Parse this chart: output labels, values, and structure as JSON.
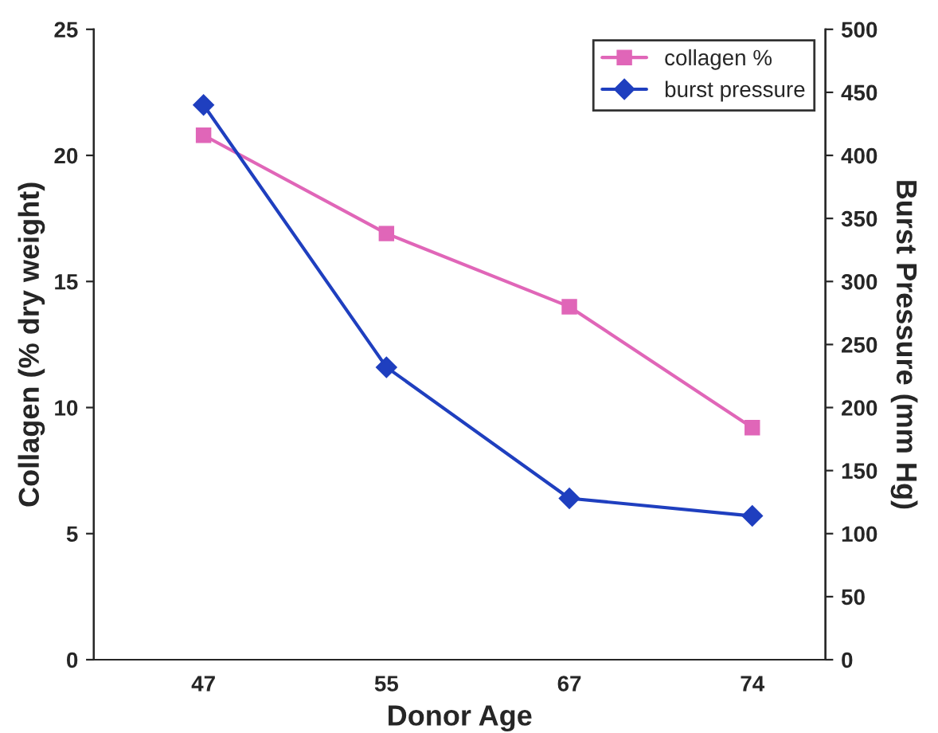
{
  "chart_data": {
    "type": "line",
    "xlabel": "Donor Age",
    "ylabel": "Collagen (% dry weight)",
    "y2label": "Burst Pressure (mm Hg)",
    "categories": [
      "47",
      "55",
      "67",
      "74"
    ],
    "series": [
      {
        "name": "collagen %",
        "color": "#e066b8",
        "marker": "square",
        "values": [
          20.8,
          16.9,
          14.0,
          9.2
        ]
      },
      {
        "name": "burst pressure",
        "color": "#1f3fbf",
        "marker": "diamond",
        "axis": "y2",
        "values": [
          440,
          232,
          128,
          114
        ]
      }
    ],
    "ylim": [
      0,
      25
    ],
    "yticks": [
      0,
      5,
      10,
      15,
      20,
      25
    ],
    "y2lim": [
      0,
      500
    ],
    "y2ticks": [
      0,
      50,
      100,
      150,
      200,
      250,
      300,
      350,
      400,
      450,
      500
    ],
    "legend": "top right",
    "grid": false
  }
}
